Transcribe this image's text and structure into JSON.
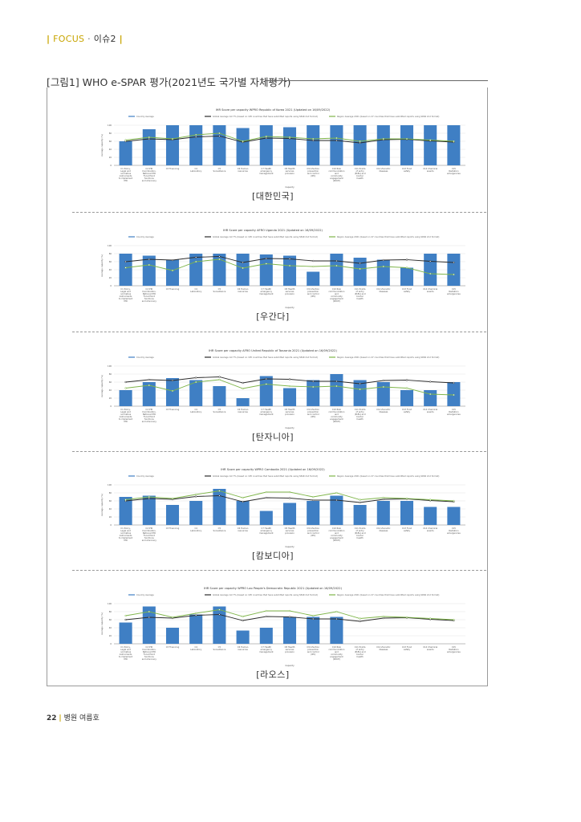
{
  "header": {
    "bar_left": "|",
    "focus": "FOCUS",
    "separator": "·",
    "issue": "이슈2",
    "bar_right": "|"
  },
  "figure": {
    "title": "[그림1] WHO e-SPAR 평가(2021년도 국가별 자체평가)"
  },
  "chart_data": [
    {
      "type": "bar",
      "title": "IHR Score per capacity WPRO Republic of Korea 2021 (Updated on 16/09/2022)",
      "caption": "[대한민국]",
      "xlabel": "Capacity",
      "ylabel": "Average capacity (%)",
      "ylim": [
        0,
        100
      ],
      "legend": [
        "Country Average",
        "Global Average 1st 7% (based on 195 countries that have submitted reports using SPAR 2nd format)",
        "Region Average 2021 (based on 27 countries that have submitted reports using SPAR 2nd format)"
      ],
      "categories": [
        "C1 Policy, Legal and normative instruments to implement IHR",
        "C2 IHR Coordination, National IHR Focal Point functions and Advocacy",
        "C3 Financing",
        "C4 Laboratory",
        "C5 Surveillance",
        "C6 Human resources",
        "C7 Health emergency management",
        "C8 Health services provision",
        "C9 Infection prevention and control (IPC)",
        "C10 Risk communication and community engagement (RCCE)",
        "C11 Points of entry (PoEs) and border health",
        "C12 Zoonotic diseases",
        "C13 Food safety",
        "C14 Chemical events",
        "C15 Radiation emergencies"
      ],
      "series": [
        {
          "name": "Country Average",
          "values": [
            60,
            90,
            100,
            100,
            100,
            93,
            100,
            95,
            100,
            100,
            100,
            100,
            100,
            100,
            100
          ]
        },
        {
          "name": "Global Average",
          "values": [
            60,
            66,
            64,
            71,
            73,
            58,
            68,
            67,
            62,
            62,
            56,
            64,
            65,
            61,
            58
          ]
        },
        {
          "name": "Region Average",
          "values": [
            63,
            70,
            66,
            76,
            80,
            60,
            72,
            70,
            66,
            68,
            60,
            66,
            66,
            63,
            60
          ]
        }
      ]
    },
    {
      "type": "bar",
      "title": "IHR Score per capacity AFRO Uganda 2021 (Updated on 16/09/2022)",
      "caption": "[우간다]",
      "xlabel": "Capacity",
      "ylabel": "Average capacity (%)",
      "ylim": [
        0,
        100
      ],
      "legend": [
        "Country Average",
        "Global Average 1st 7% (based on 195 countries that have submitted reports using SPAR 2nd format)",
        "Region Average 2021 (based on 47 countries that have submitted reports using SPAR 2nd format)"
      ],
      "categories": [
        "C1 Policy, Legal and normative instruments to implement IHR",
        "C2 IHR Coordination, National IHR Focal Point functions and Advocacy",
        "C3 Financing",
        "C4 Laboratory",
        "C5 Surveillance",
        "C6 Human resources",
        "C7 Health emergency management",
        "C8 Health services provision",
        "C9 Infection prevention and control (IPC)",
        "C10 Risk communication and community engagement (RCCE)",
        "C11 Points of entry (PoEs) and border health",
        "C12 Zoonotic diseases",
        "C13 Food safety",
        "C14 Chemical events",
        "C15 Radiation emergencies"
      ],
      "series": [
        {
          "name": "Country Average",
          "values": [
            80,
            75,
            65,
            80,
            80,
            80,
            78,
            75,
            35,
            80,
            70,
            65,
            45,
            80,
            80
          ]
        },
        {
          "name": "Global Average",
          "values": [
            60,
            66,
            64,
            71,
            73,
            58,
            68,
            67,
            62,
            62,
            56,
            64,
            65,
            61,
            58
          ]
        },
        {
          "name": "Region Average",
          "values": [
            45,
            52,
            38,
            60,
            66,
            44,
            55,
            50,
            48,
            50,
            42,
            48,
            45,
            30,
            28
          ]
        }
      ]
    },
    {
      "type": "bar",
      "title": "IHR Score per capacity AFRO United Republic of Tanzania 2021 (Updated on 16/09/2022)",
      "caption": "[탄자니아]",
      "xlabel": "Capacity",
      "ylabel": "Average capacity (%)",
      "ylim": [
        0,
        100
      ],
      "legend": [
        "Country Average",
        "Global Average 1st 7% (based on 195 countries that have submitted reports using SPAR 2nd format)",
        "Region Average 2021 (based on 47 countries that have submitted reports using SPAR 2nd format)"
      ],
      "categories": [
        "C1 Policy, Legal and normative instruments to implement IHR",
        "C2 IHR Coordination, National IHR Focal Point functions and Advocacy",
        "C3 Financing",
        "C4 Laboratory",
        "C5 Surveillance",
        "C6 Human resources",
        "C7 Health emergency management",
        "C8 Health services provision",
        "C9 Infection prevention and control (IPC)",
        "C10 Risk communication and community engagement (RCCE)",
        "C11 Points of entry (PoEs) and border health",
        "C12 Zoonotic diseases",
        "C13 Food safety",
        "C14 Chemical events",
        "C15 Radiation emergencies"
      ],
      "series": [
        {
          "name": "Country Average",
          "values": [
            40,
            60,
            70,
            65,
            50,
            20,
            75,
            45,
            65,
            80,
            65,
            60,
            40,
            40,
            60
          ]
        },
        {
          "name": "Global Average",
          "values": [
            60,
            66,
            64,
            71,
            73,
            58,
            68,
            67,
            62,
            62,
            56,
            64,
            65,
            61,
            58
          ]
        },
        {
          "name": "Region Average",
          "values": [
            45,
            52,
            38,
            60,
            66,
            44,
            55,
            50,
            48,
            50,
            42,
            48,
            45,
            30,
            28
          ]
        }
      ]
    },
    {
      "type": "bar",
      "title": "IHR Score per capacity WPRO Cambodia 2021 (Updated on 16/09/2022)",
      "caption": "[캄보디아]",
      "xlabel": "Capacity",
      "ylabel": "Average capacity (%)",
      "ylim": [
        0,
        100
      ],
      "legend": [
        "Country Average",
        "Global Average 1st 7% (based on 195 countries that have submitted reports using SPAR 2nd format)",
        "Region Average 2021 (based on 27 countries that have submitted reports using SPAR 2nd format)"
      ],
      "categories": [
        "C1 Policy, Legal and normative instruments to implement IHR",
        "C2 IHR Coordination, National IHR Focal Point functions and Advocacy",
        "C3 Financing",
        "C4 Laboratory",
        "C5 Surveillance",
        "C6 Human resources",
        "C7 Health emergency management",
        "C8 Health services provision",
        "C9 Infection prevention and control (IPC)",
        "C10 Risk communication and community engagement (RCCE)",
        "C11 Points of entry (PoEs) and border health",
        "C12 Zoonotic diseases",
        "C13 Food safety",
        "C14 Chemical events",
        "C15 Radiation emergencies"
      ],
      "series": [
        {
          "name": "Country Average",
          "values": [
            70,
            73,
            50,
            60,
            90,
            60,
            35,
            55,
            60,
            73,
            50,
            60,
            60,
            45,
            45
          ]
        },
        {
          "name": "Global Average",
          "values": [
            60,
            66,
            64,
            71,
            73,
            58,
            68,
            67,
            62,
            62,
            56,
            64,
            65,
            61,
            58
          ]
        },
        {
          "name": "Region Average",
          "values": [
            63,
            70,
            66,
            76,
            85,
            68,
            82,
            82,
            70,
            80,
            63,
            68,
            66,
            63,
            60
          ]
        }
      ]
    },
    {
      "type": "bar",
      "title": "IHR Score per capacity WPRO Lao People's Democratic Republic 2021 (Updated on 16/09/2022)",
      "caption": "[라오스]",
      "xlabel": "Capacity",
      "ylabel": "Average capacity (%)",
      "ylim": [
        0,
        100
      ],
      "legend": [
        "Country Average",
        "Global Average 1st 7% (based on 195 countries that have submitted reports using SPAR 2nd format)",
        "Region Average 2021 (based on 27 countries that have submitted reports using SPAR 2nd format)"
      ],
      "categories": [
        "C1 Policy, Legal and normative instruments to implement IHR",
        "C2 IHR Coordination, National IHR Focal Point functions and Advocacy",
        "C3 Financing",
        "C4 Laboratory",
        "C5 Surveillance",
        "C6 Human resources",
        "C7 Health emergency management",
        "C8 Health services provision",
        "C9 Infection prevention and control (IPC)",
        "C10 Risk communication and community engagement (RCCE)",
        "C11 Points of entry (PoEs) and border health",
        "C12 Zoonotic diseases",
        "C13 Food safety",
        "C14 Chemical events",
        "C15 Radiation emergencies"
      ],
      "series": [
        {
          "name": "Country Average",
          "values": [
            53,
            93,
            40,
            73,
            93,
            33,
            40,
            67,
            67,
            67,
            0,
            0,
            0,
            0,
            0
          ]
        },
        {
          "name": "Global Average",
          "values": [
            60,
            66,
            64,
            71,
            73,
            58,
            68,
            67,
            62,
            62,
            56,
            64,
            65,
            61,
            58
          ]
        },
        {
          "name": "Region Average",
          "values": [
            70,
            80,
            66,
            76,
            85,
            68,
            82,
            82,
            70,
            80,
            63,
            68,
            66,
            63,
            60
          ]
        }
      ]
    }
  ],
  "colors": {
    "bar": "#3f7fc4",
    "global_line": "#2b2b2b",
    "region_line": "#7fb54a",
    "accent": "#c8a500",
    "grid": "#d9d9d9"
  },
  "footer": {
    "page_number": "22",
    "pipe": "|",
    "publication": "병원 여름호"
  }
}
